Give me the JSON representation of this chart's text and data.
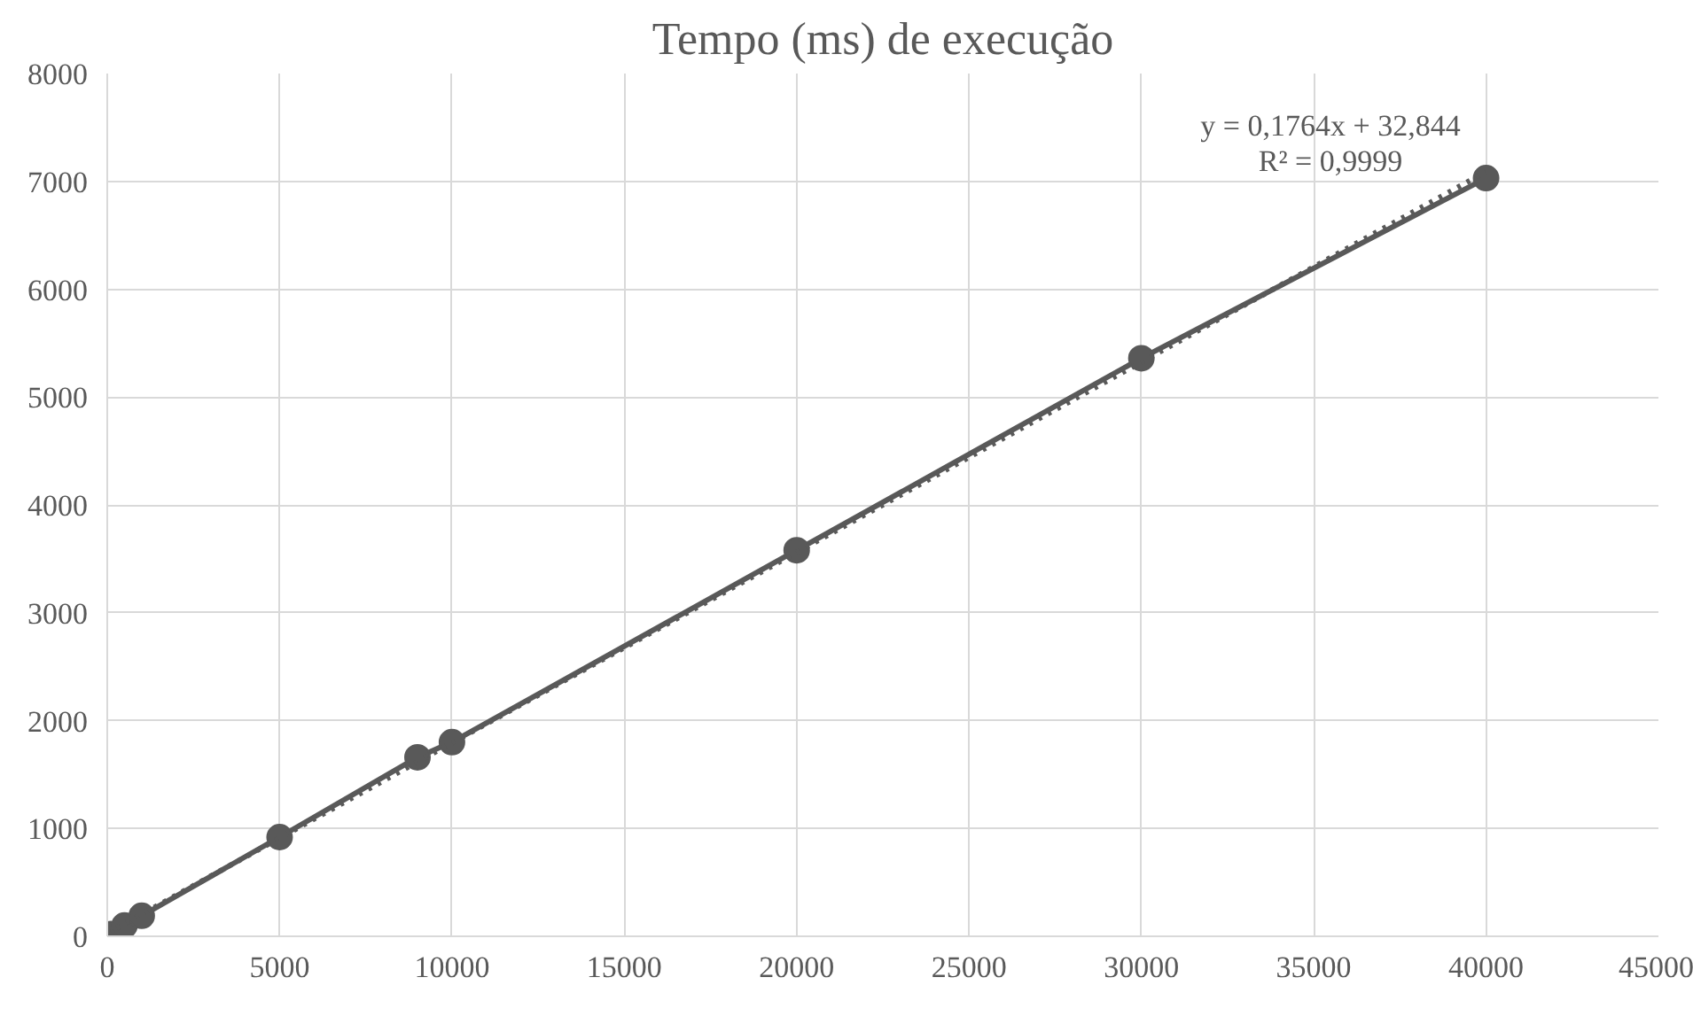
{
  "chart_data": {
    "type": "line",
    "title": "Tempo (ms) de execução",
    "xlim": [
      0,
      45000
    ],
    "xticks": [
      0,
      5000,
      10000,
      15000,
      20000,
      25000,
      30000,
      35000,
      40000,
      45000
    ],
    "ylim": [
      0,
      8000
    ],
    "yticks": [
      0,
      1000,
      2000,
      3000,
      4000,
      5000,
      6000,
      7000,
      8000
    ],
    "grid": true,
    "series": [
      {
        "color": "#595959",
        "marker": "circle",
        "line_style": "solid",
        "x": [
          10,
          100,
          500,
          1000,
          5000,
          9000,
          10000,
          20000,
          30000,
          40000
        ],
        "values": [
          0,
          20,
          100,
          190,
          920,
          1660,
          1800,
          3580,
          5360,
          7030
        ]
      },
      {
        "color": "#595959",
        "marker": "none",
        "line_style": "dotted",
        "x": [
          10,
          40000
        ],
        "values": [
          30,
          7090
        ]
      }
    ],
    "annotations": [
      "y = 0,1764x + 32,844",
      "R² = 0,9999"
    ]
  }
}
